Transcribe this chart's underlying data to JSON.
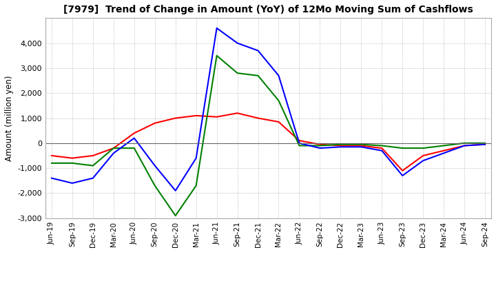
{
  "title": "[7979]  Trend of Change in Amount (YoY) of 12Mo Moving Sum of Cashflows",
  "ylabel": "Amount (million yen)",
  "ylim": [
    -3000,
    5000
  ],
  "yticks": [
    -3000,
    -2000,
    -1000,
    0,
    1000,
    2000,
    3000,
    4000
  ],
  "background_color": "#ffffff",
  "grid_color": "#aaaaaa",
  "labels": [
    "Jun-19",
    "Sep-19",
    "Dec-19",
    "Mar-20",
    "Jun-20",
    "Sep-20",
    "Dec-20",
    "Mar-21",
    "Jun-21",
    "Sep-21",
    "Dec-21",
    "Mar-22",
    "Jun-22",
    "Sep-22",
    "Dec-22",
    "Mar-23",
    "Jun-23",
    "Sep-23",
    "Dec-23",
    "Mar-24",
    "Jun-24",
    "Sep-24"
  ],
  "operating": [
    -500,
    -600,
    -500,
    -200,
    400,
    800,
    1000,
    1100,
    1050,
    1200,
    1000,
    850,
    100,
    -50,
    -100,
    -100,
    -200,
    -1100,
    -500,
    -300,
    -100,
    -50
  ],
  "investing": [
    -800,
    -800,
    -900,
    -200,
    -200,
    -1700,
    -2900,
    -1700,
    3500,
    2800,
    2700,
    1700,
    -100,
    -100,
    -50,
    -50,
    -100,
    -200,
    -200,
    -100,
    0,
    0
  ],
  "free": [
    -1400,
    -1600,
    -1400,
    -400,
    200,
    -900,
    -1900,
    -600,
    4600,
    4000,
    3700,
    2700,
    0,
    -200,
    -150,
    -150,
    -300,
    -1300,
    -700,
    -400,
    -100,
    -50
  ],
  "operating_color": "#ff0000",
  "investing_color": "#008000",
  "free_color": "#0000ff"
}
